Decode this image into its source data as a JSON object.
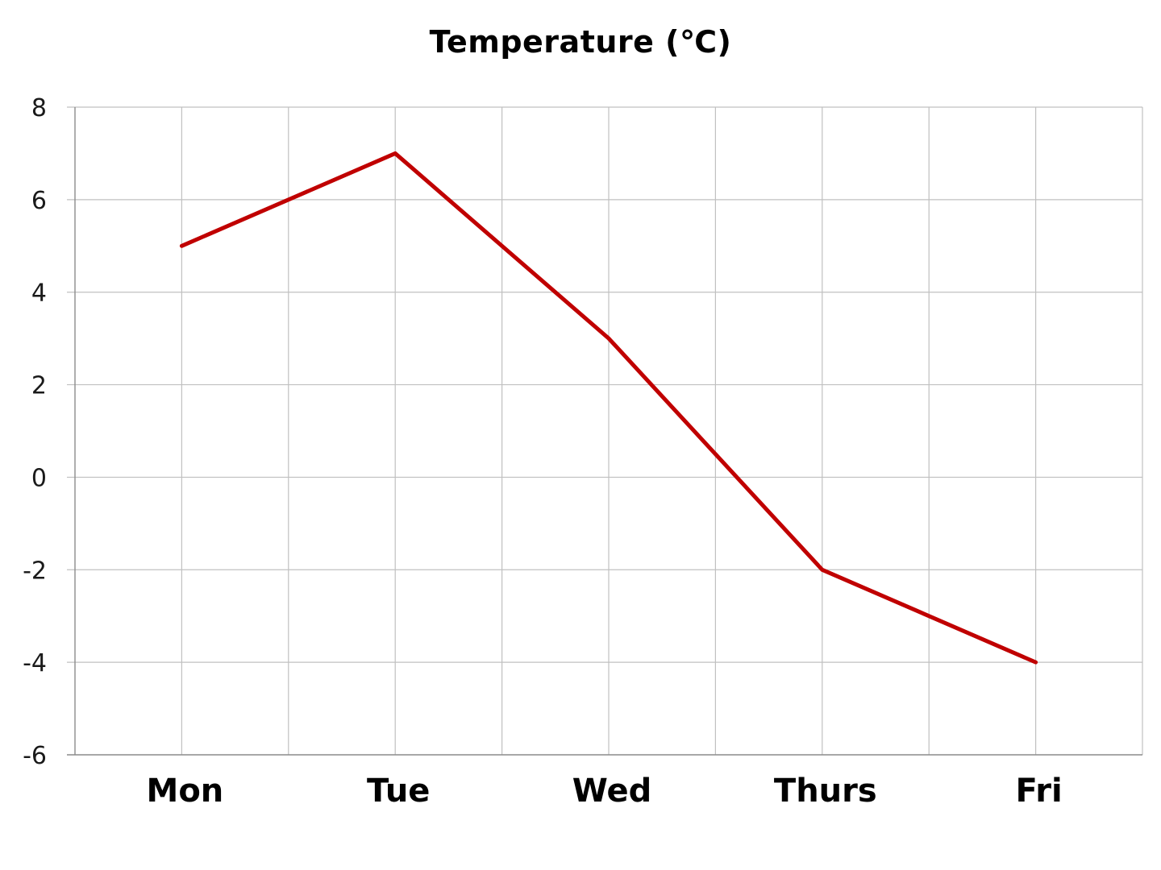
{
  "chart_data": {
    "type": "line",
    "title": "Temperature (℃)",
    "xlabel": "",
    "ylabel": "",
    "categories": [
      "Mon",
      "Tue",
      "Wed",
      "Thurs",
      "Fri"
    ],
    "series": [
      {
        "values": [
          5,
          7,
          3,
          -2,
          -4
        ],
        "color": "#c00000"
      }
    ],
    "ylim": [
      -6,
      8
    ],
    "yticks": [
      8,
      6,
      4,
      2,
      0,
      -2,
      -4,
      -6
    ],
    "ytick_labels": [
      "8",
      "6",
      "4",
      "2",
      "0",
      "-2",
      "-4",
      "-6"
    ],
    "grid": true,
    "legend": "none"
  }
}
